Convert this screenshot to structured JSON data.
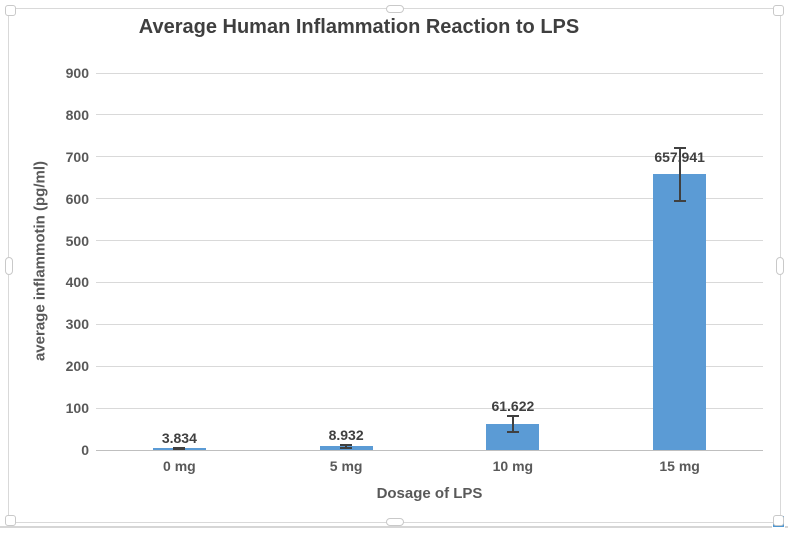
{
  "chart_data": {
    "type": "bar",
    "title": "Average Human Inflammation Reaction to LPS",
    "xlabel": "Dosage of LPS",
    "ylabel": "average inflammotin (pg/ml)",
    "categories": [
      "0 mg",
      "5 mg",
      "10 mg",
      "15 mg"
    ],
    "values": [
      3.834,
      8.932,
      61.622,
      657.941
    ],
    "data_labels": [
      "3.834",
      "8.932",
      "61.622",
      "657.941"
    ],
    "error_bars_estimated": [
      2,
      3,
      19,
      64
    ],
    "ylim": [
      0,
      900
    ],
    "ytick_step": 100,
    "yticks": [
      "0",
      "100",
      "200",
      "300",
      "400",
      "500",
      "600",
      "700",
      "800",
      "900"
    ],
    "grid": true,
    "legend": "none",
    "colors": {
      "bar_fill": "#5b9bd5",
      "error_bar": "#404040",
      "gridline": "#d9d9d9",
      "axis_line": "#bfbfbf",
      "title_text": "#3f3f3f",
      "axis_text": "#595959",
      "data_label_text": "#404040",
      "chart_border": "#d9d9d9",
      "fill_handle": "#4e97d1"
    }
  }
}
